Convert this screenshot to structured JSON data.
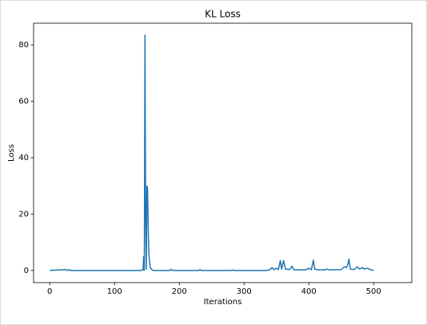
{
  "chart_data": {
    "type": "line",
    "title": "KL Loss",
    "x_label": "Iterations",
    "y_label": "Loss",
    "x": [
      0,
      25,
      27,
      30,
      32,
      100,
      140,
      144,
      145,
      146,
      147,
      148,
      149,
      150,
      151,
      152,
      153,
      155,
      158,
      160,
      185,
      187,
      189,
      230,
      232,
      234,
      280,
      282,
      284,
      335,
      340,
      343,
      346,
      350,
      353,
      356,
      358,
      361,
      364,
      370,
      374,
      377,
      395,
      400,
      404,
      407,
      409,
      415,
      425,
      428,
      431,
      450,
      455,
      458,
      460,
      462,
      464,
      470,
      475,
      478,
      483,
      486,
      490,
      495,
      500
    ],
    "series": [
      {
        "name": "KL Loss",
        "color": "#1f77b4",
        "values": [
          0,
          0.3,
          0,
          0.3,
          0,
          0,
          0,
          0.2,
          5,
          0,
          83.5,
          20,
          0.5,
          30,
          29,
          15,
          6,
          1,
          0.2,
          0,
          0,
          0.4,
          0,
          0,
          0.3,
          0,
          0,
          0.2,
          0,
          0,
          0.3,
          1,
          0.3,
          0.8,
          0.3,
          3.5,
          0.5,
          3.5,
          0.5,
          0.3,
          1.5,
          0.2,
          0.2,
          0.8,
          0.3,
          3.7,
          0.5,
          0.2,
          0.2,
          0.5,
          0.2,
          0.3,
          1.3,
          1,
          2,
          4,
          0.5,
          0.3,
          1.3,
          0.5,
          1,
          0.5,
          0.8,
          0.3,
          0
        ]
      }
    ],
    "xlim": [
      -25,
      559
    ],
    "ylim": [
      -4.3,
      87.7
    ],
    "xticks": [
      0,
      100,
      200,
      300,
      400,
      500
    ],
    "yticks": [
      0,
      20,
      40,
      60,
      80
    ]
  }
}
